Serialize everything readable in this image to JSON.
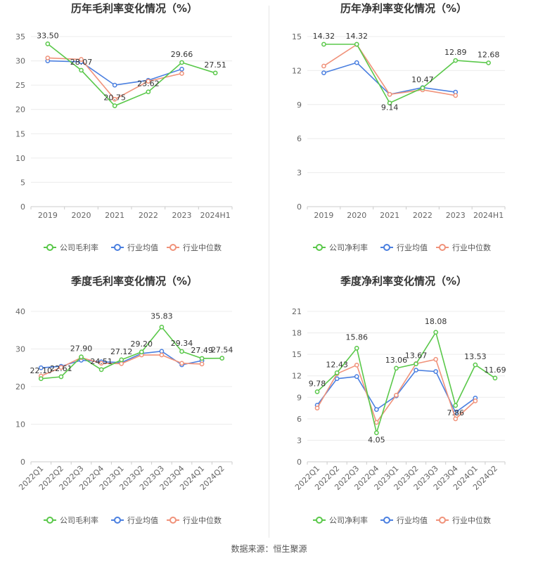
{
  "source_text": "数据来源：恒生聚源",
  "colors": {
    "company": "#5ac84a",
    "industry_avg": "#4a7fe0",
    "industry_median": "#f0927a"
  },
  "chart_data": [
    {
      "id": "annual-gross",
      "type": "line",
      "title": "历年毛利率变化情况（%）",
      "categories": [
        "2019",
        "2020",
        "2021",
        "2022",
        "2023",
        "2024H1"
      ],
      "ylim": [
        0,
        35
      ],
      "yticks": [
        0,
        5,
        10,
        15,
        20,
        25,
        30,
        35
      ],
      "grid": true,
      "legend_position": "bottom",
      "series": [
        {
          "key": "company",
          "name": "公司毛利率",
          "values": [
            33.5,
            28.07,
            20.75,
            23.62,
            29.66,
            27.51
          ],
          "labels": [
            "33.50",
            "28.07",
            "20.75",
            "23.62",
            "29.66",
            "27.51"
          ]
        },
        {
          "key": "industry_avg",
          "name": "行业均值",
          "values": [
            30.0,
            29.8,
            25.0,
            26.0,
            28.3,
            null
          ]
        },
        {
          "key": "industry_median",
          "name": "行业中位数",
          "values": [
            30.6,
            30.3,
            22.1,
            25.8,
            27.4,
            null
          ]
        }
      ]
    },
    {
      "id": "annual-net",
      "type": "line",
      "title": "历年净利率变化情况（%）",
      "categories": [
        "2019",
        "2020",
        "2021",
        "2022",
        "2023",
        "2024H1"
      ],
      "ylim": [
        0,
        15
      ],
      "yticks": [
        0,
        3,
        6,
        9,
        12,
        15
      ],
      "grid": true,
      "legend_position": "bottom",
      "series": [
        {
          "key": "company",
          "name": "公司净利率",
          "values": [
            14.32,
            14.32,
            9.14,
            10.47,
            12.89,
            12.68
          ],
          "labels": [
            "14.32",
            "14.32",
            "9.14",
            "10.47",
            "12.89",
            "12.68"
          ]
        },
        {
          "key": "industry_avg",
          "name": "行业均值",
          "values": [
            11.8,
            12.7,
            9.9,
            10.5,
            10.1,
            null
          ]
        },
        {
          "key": "industry_median",
          "name": "行业中位数",
          "values": [
            12.4,
            14.3,
            9.9,
            10.3,
            9.8,
            null
          ]
        }
      ]
    },
    {
      "id": "quarterly-gross",
      "type": "line",
      "title": "季度毛利率变化情况（%）",
      "categories": [
        "2022Q1",
        "2022Q2",
        "2022Q3",
        "2022Q4",
        "2023Q1",
        "2023Q2",
        "2023Q3",
        "2023Q4",
        "2024Q1",
        "2024Q2"
      ],
      "ylim": [
        0,
        40
      ],
      "yticks": [
        0,
        10,
        20,
        30,
        40
      ],
      "grid": true,
      "legend_position": "bottom",
      "series": [
        {
          "key": "company",
          "name": "公司毛利率",
          "values": [
            22.1,
            22.61,
            27.9,
            24.51,
            27.12,
            29.2,
            35.83,
            29.34,
            27.49,
            27.54
          ],
          "labels": [
            "22.10",
            "22.61",
            "27.90",
            "24.51",
            "27.12",
            "29.20",
            "35.83",
            "29.34",
            "27.49",
            "27.54"
          ]
        },
        {
          "key": "industry_avg",
          "name": "行业均值",
          "values": [
            25.0,
            25.4,
            27.0,
            26.6,
            26.4,
            28.8,
            29.4,
            25.8,
            26.9,
            null
          ]
        },
        {
          "key": "industry_median",
          "name": "行业中位数",
          "values": [
            22.8,
            25.1,
            27.7,
            26.2,
            26.1,
            28.4,
            28.4,
            26.2,
            26.0,
            null
          ]
        }
      ]
    },
    {
      "id": "quarterly-net",
      "type": "line",
      "title": "季度净利率变化情况（%）",
      "categories": [
        "2022Q1",
        "2022Q2",
        "2022Q3",
        "2022Q4",
        "2023Q1",
        "2023Q2",
        "2023Q3",
        "2023Q4",
        "2024Q1",
        "2024Q2"
      ],
      "ylim": [
        0,
        21
      ],
      "yticks": [
        0,
        3,
        6,
        9,
        12,
        15,
        18,
        21
      ],
      "grid": true,
      "legend_position": "bottom",
      "series": [
        {
          "key": "company",
          "name": "公司净利率",
          "values": [
            9.78,
            12.43,
            15.86,
            4.05,
            13.06,
            13.67,
            18.08,
            7.86,
            13.53,
            11.69
          ],
          "labels": [
            "9.78",
            "12.43",
            "15.86",
            "4.05",
            "13.06",
            "13.67",
            "18.08",
            "7.86",
            "13.53",
            "11.69"
          ]
        },
        {
          "key": "industry_avg",
          "name": "行业均值",
          "values": [
            7.9,
            11.6,
            11.9,
            7.3,
            9.2,
            12.8,
            12.6,
            6.9,
            8.9,
            null
          ]
        },
        {
          "key": "industry_median",
          "name": "行业中位数",
          "values": [
            7.5,
            12.3,
            13.5,
            5.5,
            9.3,
            13.7,
            14.3,
            6.0,
            8.5,
            null
          ]
        }
      ]
    }
  ]
}
